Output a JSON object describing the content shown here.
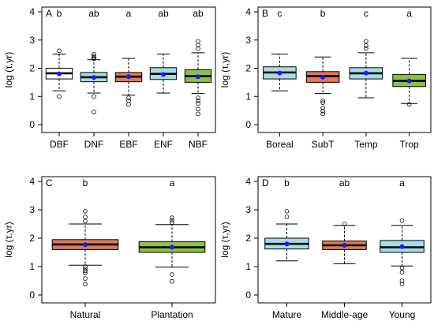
{
  "chart_data": [
    {
      "panel": "A",
      "type": "box",
      "ylabel": "log (τ,yr)",
      "ylim": [
        0,
        4
      ],
      "yticks": [
        "0",
        "1",
        "2",
        "3",
        "4"
      ],
      "categories": [
        "DBF",
        "DNF",
        "EBF",
        "ENF",
        "NBF"
      ],
      "letters": [
        "b",
        "ab",
        "a",
        "ab",
        "ab"
      ],
      "colors": [
        "#ffffff",
        "#a8dbe6",
        "#e07a55",
        "#a8dbe6",
        "#8fbf4a"
      ],
      "stats": [
        {
          "whisker_low": 1.2,
          "q1": 1.62,
          "median": 1.82,
          "q3": 2.0,
          "whisker_high": 2.5,
          "mean": 1.8,
          "outliers": [
            2.62,
            1.0
          ]
        },
        {
          "whisker_low": 1.12,
          "q1": 1.52,
          "median": 1.68,
          "q3": 1.85,
          "whisker_high": 2.3,
          "mean": 1.67,
          "outliers": [
            2.5,
            2.43,
            2.38,
            2.34,
            1.0,
            0.45
          ]
        },
        {
          "whisker_low": 1.05,
          "q1": 1.52,
          "median": 1.7,
          "q3": 1.85,
          "whisker_high": 2.35,
          "mean": 1.7,
          "outliers": [
            0.95,
            0.85,
            0.72
          ]
        },
        {
          "whisker_low": 1.12,
          "q1": 1.6,
          "median": 1.8,
          "q3": 2.02,
          "whisker_high": 2.5,
          "mean": 1.78,
          "outliers": []
        },
        {
          "whisker_low": 1.1,
          "q1": 1.5,
          "median": 1.72,
          "q3": 1.95,
          "whisker_high": 2.55,
          "mean": 1.7,
          "outliers": [
            2.95,
            2.82,
            2.7,
            0.95,
            0.85,
            0.75,
            0.55,
            0.38
          ]
        }
      ]
    },
    {
      "panel": "B",
      "type": "box",
      "ylabel": "log (τ,yr)",
      "ylim": [
        0,
        4
      ],
      "yticks": [
        "0",
        "1",
        "2",
        "3",
        "4"
      ],
      "categories": [
        "Boreal",
        "SubT",
        "Temp",
        "Trop"
      ],
      "letters": [
        "c",
        "b",
        "c",
        "a"
      ],
      "colors": [
        "#a8dbe6",
        "#e07a55",
        "#a8dbe6",
        "#8fbf4a"
      ],
      "stats": [
        {
          "whisker_low": 1.2,
          "q1": 1.62,
          "median": 1.85,
          "q3": 2.05,
          "whisker_high": 2.5,
          "mean": 1.83,
          "outliers": []
        },
        {
          "whisker_low": 1.1,
          "q1": 1.5,
          "median": 1.72,
          "q3": 1.88,
          "whisker_high": 2.4,
          "mean": 1.68,
          "outliers": [
            0.85,
            0.78,
            0.6,
            0.48,
            0.38
          ]
        },
        {
          "whisker_low": 0.95,
          "q1": 1.62,
          "median": 1.82,
          "q3": 2.02,
          "whisker_high": 2.55,
          "mean": 1.83,
          "outliers": [
            2.95,
            2.8,
            2.7
          ]
        },
        {
          "whisker_low": 0.75,
          "q1": 1.35,
          "median": 1.55,
          "q3": 1.78,
          "whisker_high": 2.35,
          "mean": 1.55,
          "outliers": [
            0.72
          ]
        }
      ]
    },
    {
      "panel": "C",
      "type": "box",
      "ylabel": "log (τ,yr)",
      "ylim": [
        0,
        4
      ],
      "yticks": [
        "0",
        "1",
        "2",
        "3",
        "4"
      ],
      "categories": [
        "Natural",
        "Plantation"
      ],
      "letters": [
        "b",
        "a"
      ],
      "colors": [
        "#e07a55",
        "#8fbf4a"
      ],
      "stats": [
        {
          "whisker_low": 1.05,
          "q1": 1.6,
          "median": 1.78,
          "q3": 1.95,
          "whisker_high": 2.5,
          "mean": 1.77,
          "outliers": [
            2.95,
            2.75,
            2.6,
            1.0,
            0.92,
            0.85,
            0.78,
            0.58,
            0.38
          ]
        },
        {
          "whisker_low": 0.98,
          "q1": 1.5,
          "median": 1.68,
          "q3": 1.88,
          "whisker_high": 2.48,
          "mean": 1.68,
          "outliers": [
            2.72,
            2.63,
            2.55,
            0.72,
            0.48
          ]
        }
      ]
    },
    {
      "panel": "D",
      "type": "box",
      "ylabel": "log (τ,yr)",
      "ylim": [
        0,
        4
      ],
      "yticks": [
        "0",
        "1",
        "2",
        "3",
        "4"
      ],
      "categories": [
        "Mature",
        "Middle-age",
        "Young"
      ],
      "letters": [
        "b",
        "ab",
        "a"
      ],
      "colors": [
        "#a8dbe6",
        "#e07a55",
        "#a8dbe6"
      ],
      "stats": [
        {
          "whisker_low": 1.2,
          "q1": 1.62,
          "median": 1.8,
          "q3": 2.0,
          "whisker_high": 2.5,
          "mean": 1.8,
          "outliers": [
            2.95,
            2.75
          ]
        },
        {
          "whisker_low": 1.1,
          "q1": 1.6,
          "median": 1.75,
          "q3": 1.9,
          "whisker_high": 2.45,
          "mean": 1.75,
          "outliers": [
            2.5
          ]
        },
        {
          "whisker_low": 1.02,
          "q1": 1.5,
          "median": 1.68,
          "q3": 1.92,
          "whisker_high": 2.45,
          "mean": 1.7,
          "outliers": [
            2.62,
            0.95,
            0.8,
            0.5,
            0.38
          ]
        }
      ]
    }
  ],
  "colors": {
    "mean_point": "#1a1aff",
    "axis": "#000000"
  }
}
